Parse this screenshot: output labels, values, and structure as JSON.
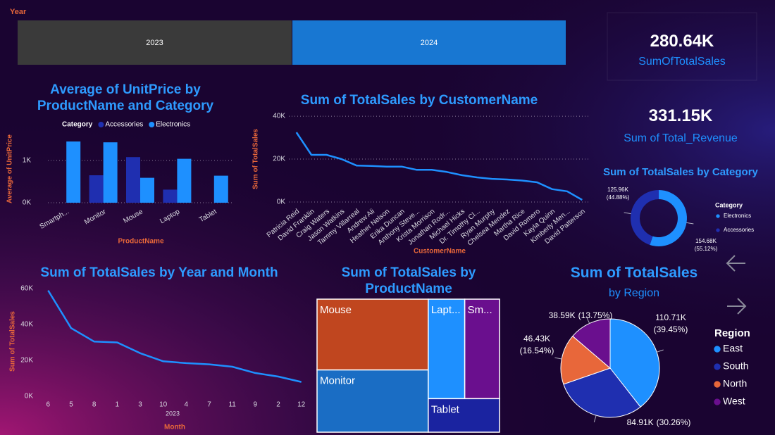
{
  "slicer": {
    "title": "Year",
    "options": [
      "2023",
      "2024"
    ],
    "selected": "2024"
  },
  "cards": [
    {
      "value": "280.64K",
      "label": "SumOfTotalSales"
    },
    {
      "value": "331.15K",
      "label": "Sum of Total_Revenue"
    }
  ],
  "chart_data": [
    {
      "type": "bar",
      "title": "Average of UnitPrice by ProductName and Category",
      "x_label": "ProductName",
      "y_label": "Average of UnitPrice",
      "legend_title": "Category",
      "categories": [
        "Smartph...",
        "Monitor",
        "Mouse",
        "Laptop",
        "Tablet"
      ],
      "series": [
        {
          "name": "Accessories",
          "color": "#1f2fb0",
          "values": [
            null,
            650,
            1080,
            310,
            null
          ]
        },
        {
          "name": "Electronics",
          "color": "#1e90ff",
          "values": [
            1450,
            1430,
            590,
            1040,
            640
          ]
        }
      ],
      "ylim": [
        0,
        1600
      ],
      "yticks": [
        {
          "value": 0,
          "label": "0K"
        },
        {
          "value": 1000,
          "label": "1K"
        }
      ],
      "grid": true
    },
    {
      "type": "line",
      "title": "Sum of TotalSales by CustomerName",
      "x_label": "CustomerName",
      "y_label": "Sum of TotalSales",
      "categories": [
        "Patricia Reid",
        "David Franklin",
        "Craig Waters",
        "Jason Watkins",
        "Tammy Villarreal",
        "Andrew Ali",
        "Heather Nelson",
        "Erika Duncan",
        "Anthony Steve...",
        "Krista Morrison",
        "Jonathan Rodr...",
        "Michael Hicks",
        "Dr. Timothy Cl...",
        "Ryan Murphy",
        "Chelsea Mendez",
        "Martha Rice",
        "David Romero",
        "Kayla Quinn",
        "Kimberly Men...",
        "David Patterson"
      ],
      "series": [
        {
          "name": "Sum of TotalSales",
          "color": "#1e90ff",
          "values": [
            32500,
            22000,
            22000,
            20000,
            17000,
            16800,
            16500,
            16500,
            15000,
            15000,
            14000,
            12500,
            11500,
            10800,
            10500,
            10000,
            9200,
            6000,
            5000,
            1000
          ]
        }
      ],
      "ylim": [
        0,
        42000
      ],
      "yticks": [
        {
          "value": 0,
          "label": "0K"
        },
        {
          "value": 20000,
          "label": "20K"
        },
        {
          "value": 40000,
          "label": "40K"
        }
      ],
      "grid": true
    },
    {
      "type": "line",
      "title": "Sum of TotalSales by Year and Month",
      "x_label": "Month",
      "y_label": "Sum of TotalSales",
      "x_group_label": "2023",
      "categories": [
        "6",
        "5",
        "8",
        "1",
        "3",
        "10",
        "4",
        "7",
        "11",
        "9",
        "2",
        "12"
      ],
      "series": [
        {
          "name": "Sum of TotalSales",
          "color": "#1e90ff",
          "values": [
            59000,
            38000,
            30500,
            30000,
            24000,
            19500,
            18500,
            17800,
            16500,
            13000,
            11000,
            8000
          ]
        }
      ],
      "ylim": [
        0,
        62000
      ],
      "yticks": [
        {
          "value": 0,
          "label": "0K"
        },
        {
          "value": 20000,
          "label": "20K"
        },
        {
          "value": 40000,
          "label": "40K"
        },
        {
          "value": 60000,
          "label": "60K"
        }
      ],
      "grid": false
    },
    {
      "type": "treemap",
      "title": "Sum of TotalSales by ProductName",
      "categories": [
        "Mouse",
        "Monitor",
        "Lapt...",
        "Sm...",
        "Tablet"
      ],
      "values": [
        91000,
        80000,
        42000,
        40000,
        27640
      ],
      "colors": [
        "#c0461f",
        "#1a6dc4",
        "#1e90ff",
        "#6a0f8e",
        "#1a23a0"
      ]
    },
    {
      "type": "donut",
      "title": "Sum of TotalSales by Category",
      "legend_title": "Category",
      "categories": [
        "Electronics",
        "Accessories"
      ],
      "values": [
        154680,
        125960
      ],
      "value_labels": [
        "154.68K",
        "125.96K"
      ],
      "percent_labels": [
        "(55.12%)",
        "(44.88%)"
      ],
      "colors": [
        "#1e90ff",
        "#1f2fb0"
      ]
    },
    {
      "type": "pie",
      "title": "Sum of TotalSales",
      "subtitle": "by Region",
      "legend_title": "Region",
      "categories": [
        "East",
        "South",
        "North",
        "West"
      ],
      "values": [
        110710,
        84910,
        46430,
        38590
      ],
      "value_labels": [
        "110.71K",
        "84.91K",
        "46.43K",
        "38.59K"
      ],
      "percent_labels": [
        "(39.45%)",
        "(30.26%)",
        "(16.54%)",
        "(13.75%)"
      ],
      "colors": [
        "#1e90ff",
        "#1f2fb0",
        "#e8673a",
        "#6a0f8e"
      ]
    }
  ]
}
